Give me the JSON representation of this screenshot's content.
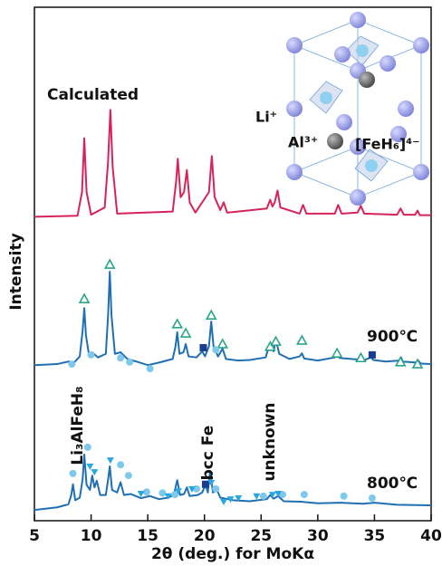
{
  "chart_data": {
    "type": "line",
    "x_label": "2θ (deg.) for MoKα",
    "y_label": "Intensity",
    "xlim": [
      5,
      40
    ],
    "xticks": [
      5,
      10,
      15,
      20,
      25,
      30,
      35,
      40
    ],
    "ylim": [
      0,
      100
    ],
    "series": [
      {
        "name": "Calculated",
        "color": "#d6245a",
        "x": [
          5,
          8.8,
          9.2,
          9.4,
          9.6,
          10.0,
          11.2,
          11.5,
          11.7,
          11.9,
          12.3,
          17.2,
          17.5,
          17.65,
          17.9,
          18.2,
          18.45,
          18.7,
          19.2,
          20.4,
          20.65,
          20.9,
          21.4,
          21.7,
          22.0,
          25.5,
          25.8,
          26.0,
          26.2,
          26.45,
          26.7,
          28.4,
          28.7,
          29.0,
          31.5,
          31.8,
          32.1,
          33.5,
          33.8,
          34.1,
          37.0,
          37.3,
          37.6,
          38.6,
          38.8,
          39.0,
          40
        ],
        "values": [
          59.2,
          59.4,
          64,
          74.5,
          64,
          59.6,
          61,
          70,
          80,
          69,
          59.8,
          60.2,
          66,
          70.5,
          63,
          64,
          68.3,
          62,
          60,
          64,
          71,
          63,
          60.5,
          62,
          60,
          60.8,
          62.5,
          61.2,
          62,
          64.3,
          61,
          59.8,
          61.5,
          59.8,
          59.8,
          61.5,
          59.8,
          60,
          61.3,
          59.8,
          59.6,
          60.8,
          59.6,
          59.6,
          60.4,
          59.5,
          59.5
        ]
      },
      {
        "name": "900℃",
        "color": "#1f6fb2",
        "x": [
          5,
          7,
          8,
          8.5,
          9.0,
          9.25,
          9.4,
          9.55,
          9.8,
          10.1,
          10.6,
          11.3,
          11.5,
          11.65,
          11.8,
          12.1,
          12.6,
          13.2,
          14,
          15,
          16,
          17.2,
          17.45,
          17.6,
          17.8,
          18.15,
          18.35,
          18.6,
          19.3,
          19.8,
          20.05,
          20.4,
          20.6,
          20.8,
          21.2,
          21.6,
          21.9,
          23,
          24,
          25.4,
          25.7,
          25.9,
          26.1,
          26.3,
          26.6,
          27.5,
          28.4,
          28.6,
          28.8,
          30,
          31.5,
          31.7,
          31.9,
          33.5,
          33.8,
          34.1,
          34.7,
          34.9,
          36,
          37.2,
          37.35,
          37.5,
          38.7,
          38.85,
          39.1,
          40
        ],
        "values": [
          30.3,
          30.5,
          31,
          30.8,
          32,
          37,
          41.4,
          36,
          32.5,
          32.8,
          31.8,
          32.5,
          40,
          48.5,
          40,
          32.5,
          32.8,
          31.5,
          31,
          30.3,
          30.8,
          31.5,
          34,
          36.7,
          32.5,
          32.8,
          34.4,
          32,
          31.8,
          33,
          32,
          34,
          38.8,
          34,
          32,
          33.5,
          31.5,
          31.2,
          31.3,
          31.8,
          34,
          34.4,
          33,
          35.3,
          32.5,
          31.5,
          32,
          32.6,
          31.6,
          31.2,
          31.8,
          32.8,
          31.7,
          31.4,
          32.2,
          31.3,
          31.8,
          31.3,
          31,
          31.2,
          31.8,
          31,
          30.8,
          31.2,
          30.6,
          30.5
        ]
      },
      {
        "name": "800℃",
        "color": "#1f6fb2",
        "x": [
          5,
          7,
          8,
          8.25,
          8.4,
          8.6,
          9.0,
          9.25,
          9.4,
          9.6,
          9.9,
          10.1,
          10.3,
          10.5,
          10.8,
          11.3,
          11.5,
          11.65,
          11.85,
          12.3,
          12.6,
          12.9,
          13.5,
          14.4,
          15.2,
          16,
          16.8,
          17.3,
          17.6,
          17.85,
          18.2,
          18.45,
          18.7,
          19.4,
          19.8,
          20.1,
          20.3,
          20.5,
          20.75,
          21.1,
          21.4,
          22.5,
          24,
          25.5,
          25.8,
          26.1,
          26.5,
          27,
          28.5,
          30,
          32,
          34,
          35,
          37,
          40
        ],
        "values": [
          2.1,
          2.6,
          3.2,
          5,
          7.1,
          4,
          4.5,
          8,
          12.9,
          7,
          6,
          8.8,
          6.5,
          7.8,
          5,
          5,
          8,
          10.6,
          6,
          5.5,
          7.5,
          5,
          5.2,
          4.4,
          4.8,
          4.2,
          4.5,
          5,
          7.9,
          5,
          5.2,
          6.5,
          4.8,
          5,
          5.5,
          7,
          5.5,
          9.7,
          5.5,
          6,
          4.5,
          4,
          3.8,
          4.2,
          5,
          4.3,
          4.8,
          3.8,
          3.7,
          3.4,
          3.5,
          3.3,
          3.5,
          3.1,
          3
        ]
      }
    ],
    "markers": [
      {
        "shape": "triangle-open",
        "color": "#2aa58a",
        "x": [
          9.4,
          11.65,
          17.6,
          18.35,
          20.6,
          21.6,
          25.8,
          26.3,
          28.6,
          31.7,
          33.8,
          37.3,
          38.8
        ],
        "values": [
          43.2,
          49.9,
          38.3,
          36.5,
          40,
          34.4,
          33.9,
          34.9,
          35.1,
          32.6,
          31.7,
          30.9,
          30.5
        ]
      },
      {
        "shape": "circle",
        "color": "#7ec8ec",
        "x": [
          8.3,
          10.0,
          12.6,
          13.4,
          15.2,
          21.0,
          8.4,
          9.7,
          12.6,
          13.3,
          14.9,
          16.3,
          17.4,
          19.3,
          21.0,
          25.2,
          26.9,
          28.8,
          32.3,
          34.8
        ],
        "values": [
          30.5,
          32.3,
          31.7,
          30.9,
          29.6,
          33.3,
          9.2,
          14.3,
          10.9,
          8.8,
          5.6,
          5.4,
          5.1,
          6.2,
          6.2,
          4.8,
          5.1,
          5.1,
          4.8,
          4.4
        ]
      },
      {
        "shape": "square",
        "color": "#1a3d8f",
        "x": [
          19.9,
          34.8,
          20.1
        ],
        "values": [
          33.7,
          32.3,
          7.1
        ]
      },
      {
        "shape": "triangle-down",
        "color": "#2aa7e0",
        "x": [
          9.9,
          10.3,
          11.7,
          14.4,
          16.8,
          17.7,
          18.9,
          20.6,
          21.7,
          22.3,
          23.0,
          24.6,
          26.0,
          26.5
        ],
        "values": [
          10.6,
          9.5,
          11.8,
          5.3,
          4.8,
          5.8,
          6.2,
          7.4,
          3.7,
          4.2,
          4.4,
          4.8,
          5.1,
          5.3
        ]
      }
    ],
    "annotations": {
      "phase_li3alfeh8": "Li₃AlFeH₈",
      "phase_bcc_fe": "bcc Fe",
      "phase_unknown": "unknown",
      "ion_li": "Li⁺",
      "ion_al": "Al³⁺",
      "ion_feh6": "[FeH₆]⁴⁻"
    }
  }
}
